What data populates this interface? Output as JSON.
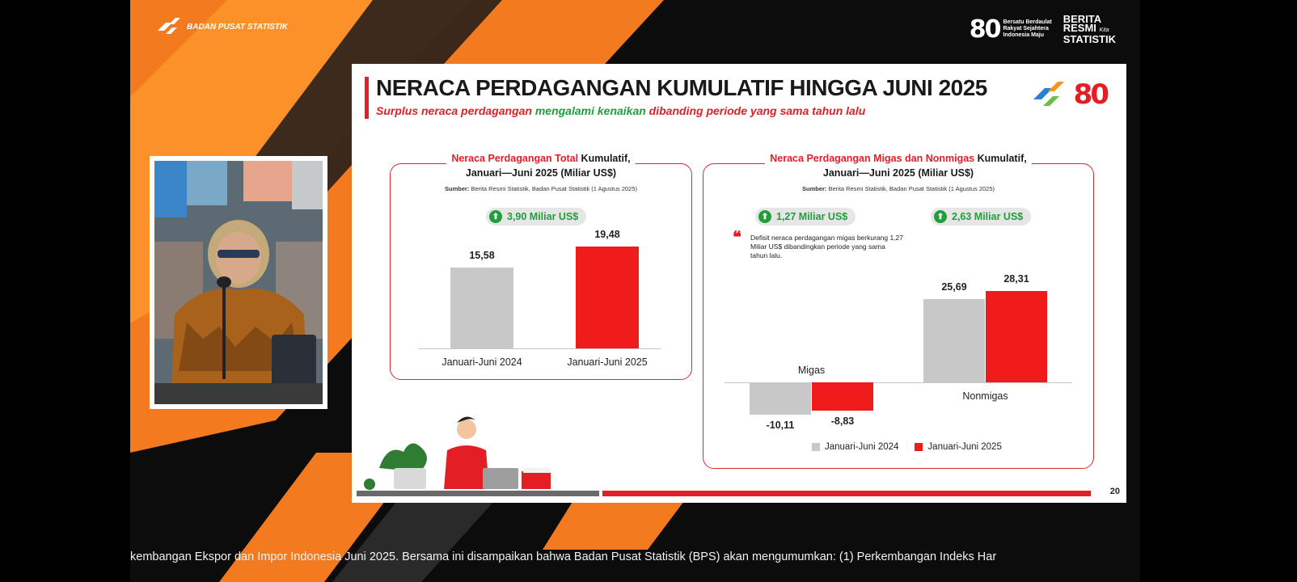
{
  "header": {
    "org_name": "BADAN PUSAT STATISTIK",
    "anniversary_number": "80",
    "anniversary_tagline_1": "Bersatu Berdaulat",
    "anniversary_tagline_2": "Rakyat Sejahtera",
    "anniversary_tagline_3": "Indonesia Maju",
    "brs_line_1": "BERITA",
    "brs_line_2": "RESMI",
    "brs_line_3": "STATISTIK",
    "brs_script": "Kita"
  },
  "slide": {
    "title": "NERACA PERDAGANGAN KUMULATIF HINGGA JUNI 2025",
    "subtitle_part1": "Surplus neraca perdagangan ",
    "subtitle_highlight": "mengalami kenaikan",
    "subtitle_part2": " dibanding periode yang sama tahun lalu",
    "logo_80": "80",
    "page_number": "20"
  },
  "left_panel": {
    "title_highlight": "Neraca Perdagangan Total",
    "title_rest": " Kumulatif,",
    "title_line2": "Januari—Juni 2025 (Miliar US$)",
    "source_label": "Sumber:",
    "source_text": " Berita Resmi Statistik, Badan Pusat Statistik (1 Agustus 2025)",
    "change_pill": "3,90 Miliar US$",
    "value_labels": [
      "15,58",
      "19,48"
    ],
    "categories": [
      "Januari-Juni 2024",
      "Januari-Juni 2025"
    ]
  },
  "right_panel": {
    "title_highlight": "Neraca Perdagangan Migas dan Nonmigas",
    "title_rest": " Kumulatif,",
    "title_line2": "Januari—Juni 2025 (Miliar US$)",
    "source_label": "Sumber:",
    "source_text": " Berita Resmi Statistik, Badan Pusat Statistik (1 Agustus 2025)",
    "pill_migas": "1,27 Miliar US$",
    "pill_nonmigas": "2,63 Miliar US$",
    "note": "Defisit neraca perdagangan migas berkurang 1,27 Miliar US$ dibandingkan periode yang sama tahun lalu.",
    "cat_migas": "Migas",
    "cat_nonmigas": "Nonmigas",
    "migas_labels": [
      "-10,11",
      "-8,83"
    ],
    "nonmigas_labels": [
      "25,69",
      "28,31"
    ],
    "legend_2024": "Januari-Juni 2024",
    "legend_2025": "Januari-Juni 2025"
  },
  "chart_data": [
    {
      "type": "bar",
      "title": "Neraca Perdagangan Total Kumulatif, Januari—Juni 2025 (Miliar US$)",
      "categories": [
        "Januari-Juni 2024",
        "Januari-Juni 2025"
      ],
      "values": [
        15.58,
        19.48
      ],
      "colors": [
        "#c8c8c8",
        "#f01c1c"
      ]
    },
    {
      "type": "bar",
      "title": "Neraca Perdagangan Migas dan Nonmigas Kumulatif, Januari—Juni 2025 (Miliar US$)",
      "categories": [
        "Migas",
        "Nonmigas"
      ],
      "series": [
        {
          "name": "Januari-Juni 2024",
          "values": [
            -10.11,
            25.69
          ],
          "color": "#c8c8c8"
        },
        {
          "name": "Januari-Juni 2025",
          "values": [
            -8.83,
            28.31
          ],
          "color": "#f01c1c"
        }
      ]
    }
  ],
  "ticker": {
    "text": "kembangan Ekspor dan Impor Indonesia Juni 2025. Bersama ini disampaikan bahwa Badan Pusat Statistik (BPS) akan mengumumkan: (1) Perkembangan Indeks Har"
  },
  "colors": {
    "accent_red": "#e31e24",
    "accent_green": "#1f9e3a",
    "bar_grey": "#c8c8c8",
    "bar_red": "#f01c1c",
    "orange": "#f47a20"
  }
}
